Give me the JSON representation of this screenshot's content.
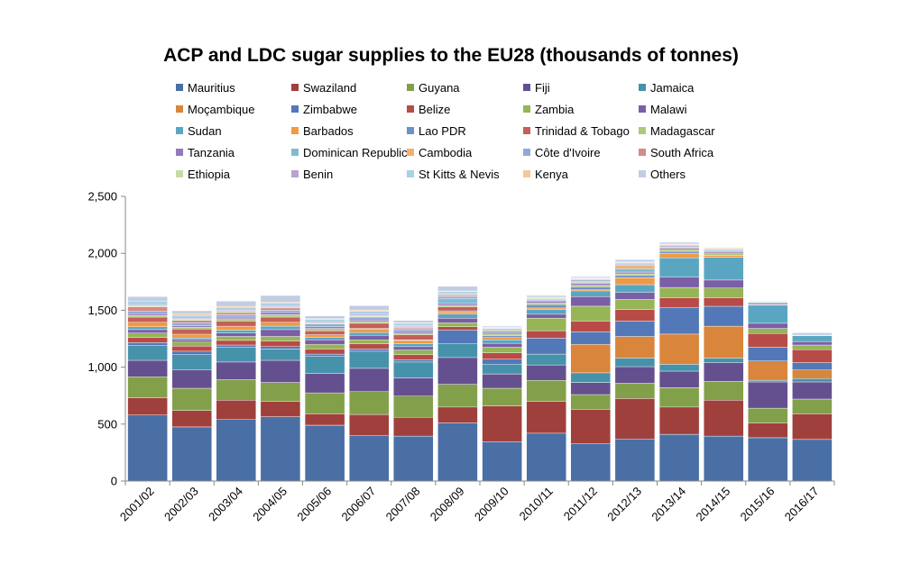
{
  "chart_data": {
    "type": "bar",
    "stacked": true,
    "title": "ACP and LDC sugar supplies to the EU28 (thousands of tonnes)",
    "xlabel": "",
    "ylabel": "",
    "ylim": [
      0,
      2500
    ],
    "yticks": [
      0,
      500,
      1000,
      1500,
      2000,
      2500
    ],
    "ytick_labels": [
      "0",
      "500",
      "1,000",
      "1,500",
      "2,000",
      "2,500"
    ],
    "grid": false,
    "legend_position": "top",
    "categories": [
      "2001/02",
      "2002/03",
      "2003/04",
      "2004/05",
      "2005/06",
      "2006/07",
      "2007/08",
      "2008/09",
      "2009/10",
      "2010/11",
      "2011/12",
      "2012/13",
      "2013/14",
      "2014/15",
      "2015/16",
      "2016/17"
    ],
    "series": [
      {
        "name": "Mauritius",
        "color": "#4a6fa5",
        "values": [
          580,
          475,
          540,
          565,
          490,
          400,
          395,
          510,
          345,
          420,
          330,
          370,
          410,
          395,
          380,
          365
        ]
      },
      {
        "name": "Swaziland",
        "color": "#a0403d",
        "values": [
          150,
          145,
          170,
          135,
          100,
          185,
          165,
          140,
          315,
          280,
          300,
          355,
          240,
          315,
          130,
          225
        ]
      },
      {
        "name": "Guyana",
        "color": "#82a04a",
        "values": [
          185,
          195,
          180,
          165,
          185,
          200,
          185,
          200,
          155,
          185,
          130,
          135,
          170,
          165,
          130,
          130
        ]
      },
      {
        "name": "Fiji",
        "color": "#65508f",
        "values": [
          145,
          160,
          155,
          195,
          170,
          205,
          160,
          235,
          125,
          135,
          105,
          145,
          145,
          165,
          230,
          150
        ]
      },
      {
        "name": "Jamaica",
        "color": "#4792ab",
        "values": [
          130,
          135,
          130,
          100,
          150,
          150,
          140,
          120,
          85,
          95,
          85,
          75,
          60,
          40,
          15,
          30
        ]
      },
      {
        "name": "Moçambique",
        "color": "#d9853b",
        "values": [
          0,
          0,
          0,
          0,
          0,
          0,
          0,
          0,
          0,
          0,
          250,
          190,
          265,
          280,
          170,
          75
        ]
      },
      {
        "name": "Zimbabwe",
        "color": "#5278b8",
        "values": [
          25,
          30,
          20,
          20,
          20,
          20,
          20,
          120,
          45,
          140,
          110,
          135,
          235,
          175,
          120,
          65
        ]
      },
      {
        "name": "Belize",
        "color": "#b84b47",
        "values": [
          45,
          45,
          40,
          50,
          45,
          45,
          45,
          30,
          55,
          65,
          95,
          100,
          85,
          75,
          120,
          115
        ]
      },
      {
        "name": "Zambia",
        "color": "#95b556",
        "values": [
          40,
          35,
          35,
          40,
          40,
          35,
          40,
          35,
          50,
          110,
          130,
          90,
          90,
          85,
          45,
          40
        ]
      },
      {
        "name": "Malawi",
        "color": "#7a5ea6",
        "values": [
          30,
          20,
          30,
          60,
          40,
          40,
          30,
          40,
          35,
          35,
          85,
          60,
          90,
          70,
          45,
          30
        ]
      },
      {
        "name": "Sudan",
        "color": "#5aa6c2",
        "values": [
          25,
          15,
          25,
          30,
          20,
          25,
          25,
          35,
          30,
          40,
          50,
          70,
          170,
          200,
          160,
          50
        ]
      },
      {
        "name": "Barbados",
        "color": "#ef9a45",
        "values": [
          40,
          35,
          35,
          35,
          25,
          30,
          30,
          20,
          20,
          15,
          10,
          60,
          40,
          15,
          0,
          0
        ]
      },
      {
        "name": "Lao PDR",
        "color": "#6d92c9",
        "values": [
          0,
          0,
          0,
          0,
          0,
          5,
          5,
          10,
          15,
          30,
          25,
          20,
          15,
          0,
          0,
          0
        ]
      },
      {
        "name": "Trinidad & Tobago",
        "color": "#c45f5b",
        "values": [
          45,
          45,
          45,
          45,
          35,
          45,
          45,
          35,
          0,
          0,
          0,
          0,
          0,
          0,
          0,
          0
        ]
      },
      {
        "name": "Madagascar",
        "color": "#afc97a",
        "values": [
          15,
          15,
          20,
          20,
          20,
          15,
          15,
          15,
          15,
          15,
          15,
          15,
          15,
          15,
          5,
          5
        ]
      },
      {
        "name": "Tanzania",
        "color": "#9479bd",
        "values": [
          15,
          15,
          15,
          20,
          15,
          15,
          15,
          15,
          15,
          15,
          15,
          15,
          15,
          15,
          10,
          5
        ]
      },
      {
        "name": "Dominican Republic",
        "color": "#7fbbd4",
        "values": [
          0,
          0,
          0,
          0,
          0,
          0,
          0,
          40,
          0,
          5,
          10,
          30,
          0,
          0,
          0,
          0
        ]
      },
      {
        "name": "Cambodia",
        "color": "#f4b071",
        "values": [
          0,
          0,
          0,
          0,
          0,
          0,
          0,
          0,
          0,
          0,
          10,
          30,
          10,
          10,
          0,
          0
        ]
      },
      {
        "name": "Côte d'Ivoire",
        "color": "#8faad8",
        "values": [
          20,
          25,
          20,
          20,
          25,
          25,
          20,
          20,
          15,
          10,
          10,
          10,
          10,
          10,
          10,
          10
        ]
      },
      {
        "name": "South Africa",
        "color": "#d48a87",
        "values": [
          40,
          20,
          20,
          20,
          0,
          5,
          10,
          10,
          0,
          0,
          0,
          0,
          0,
          0,
          0,
          0
        ]
      },
      {
        "name": "Ethiopia",
        "color": "#c9dba5",
        "values": [
          10,
          10,
          10,
          10,
          10,
          10,
          10,
          10,
          10,
          10,
          10,
          10,
          10,
          10,
          5,
          5
        ]
      },
      {
        "name": "Benin",
        "color": "#b7a4d1",
        "values": [
          10,
          10,
          10,
          10,
          10,
          10,
          10,
          10,
          10,
          5,
          5,
          5,
          5,
          5,
          0,
          5
        ]
      },
      {
        "name": "St Kitts & Nevis",
        "color": "#a9d1e2",
        "values": [
          30,
          25,
          25,
          20,
          20,
          25,
          20,
          15,
          5,
          0,
          0,
          0,
          0,
          0,
          0,
          0
        ]
      },
      {
        "name": "Kenya",
        "color": "#f6c79d",
        "values": [
          0,
          10,
          10,
          10,
          5,
          10,
          5,
          5,
          5,
          5,
          5,
          5,
          10,
          5,
          0,
          0
        ]
      },
      {
        "name": "Others",
        "color": "#c2cde3",
        "values": [
          40,
          30,
          45,
          60,
          25,
          40,
          20,
          40,
          10,
          15,
          10,
          20,
          10,
          5,
          5,
          0
        ]
      }
    ]
  }
}
